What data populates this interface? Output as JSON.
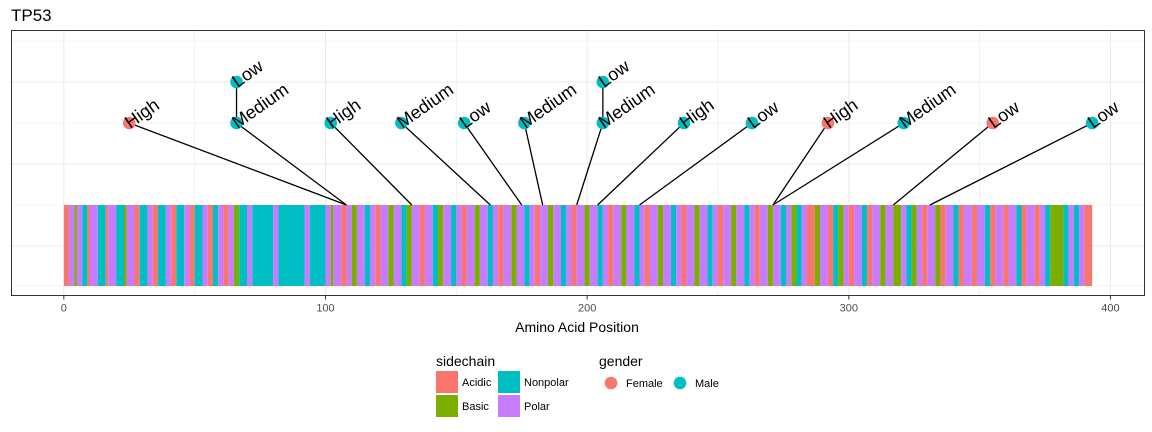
{
  "chart_data": {
    "type": "lollipop",
    "title": "TP53",
    "xlabel": "Amino Acid Position",
    "xlim": [
      -20,
      413
    ],
    "xticks": [
      0,
      100,
      200,
      300,
      400
    ],
    "protein_length": 393,
    "sidechain_colors": {
      "Acidic": "#F8766D",
      "Basic": "#7CAE00",
      "Nonpolar": "#00BFC4",
      "Polar": "#C77CFF"
    },
    "gender_colors": {
      "Female": "#F8766D",
      "Male": "#00BFC4"
    },
    "residue_segments": [
      {
        "start": 0,
        "end": 2,
        "sidechain": "Acidic"
      },
      {
        "start": 2,
        "end": 4,
        "sidechain": "Polar"
      },
      {
        "start": 4,
        "end": 5,
        "sidechain": "Basic"
      },
      {
        "start": 5,
        "end": 7,
        "sidechain": "Polar"
      },
      {
        "start": 7,
        "end": 9,
        "sidechain": "Nonpolar"
      },
      {
        "start": 9,
        "end": 10,
        "sidechain": "Acidic"
      },
      {
        "start": 10,
        "end": 13,
        "sidechain": "Polar"
      },
      {
        "start": 13,
        "end": 16,
        "sidechain": "Nonpolar"
      },
      {
        "start": 16,
        "end": 17,
        "sidechain": "Acidic"
      },
      {
        "start": 17,
        "end": 20,
        "sidechain": "Polar"
      },
      {
        "start": 20,
        "end": 23,
        "sidechain": "Nonpolar"
      },
      {
        "start": 23,
        "end": 24,
        "sidechain": "Basic"
      },
      {
        "start": 24,
        "end": 27,
        "sidechain": "Polar"
      },
      {
        "start": 27,
        "end": 29,
        "sidechain": "Acidic"
      },
      {
        "start": 29,
        "end": 32,
        "sidechain": "Nonpolar"
      },
      {
        "start": 32,
        "end": 34,
        "sidechain": "Polar"
      },
      {
        "start": 34,
        "end": 36,
        "sidechain": "Acidic"
      },
      {
        "start": 36,
        "end": 39,
        "sidechain": "Nonpolar"
      },
      {
        "start": 39,
        "end": 41,
        "sidechain": "Polar"
      },
      {
        "start": 41,
        "end": 43,
        "sidechain": "Acidic"
      },
      {
        "start": 43,
        "end": 46,
        "sidechain": "Nonpolar"
      },
      {
        "start": 46,
        "end": 48,
        "sidechain": "Polar"
      },
      {
        "start": 48,
        "end": 50,
        "sidechain": "Acidic"
      },
      {
        "start": 50,
        "end": 53,
        "sidechain": "Nonpolar"
      },
      {
        "start": 53,
        "end": 55,
        "sidechain": "Polar"
      },
      {
        "start": 55,
        "end": 57,
        "sidechain": "Acidic"
      },
      {
        "start": 57,
        "end": 59,
        "sidechain": "Nonpolar"
      },
      {
        "start": 59,
        "end": 61,
        "sidechain": "Polar"
      },
      {
        "start": 61,
        "end": 63,
        "sidechain": "Acidic"
      },
      {
        "start": 63,
        "end": 65,
        "sidechain": "Polar"
      },
      {
        "start": 65,
        "end": 67,
        "sidechain": "Basic"
      },
      {
        "start": 67,
        "end": 70,
        "sidechain": "Nonpolar"
      },
      {
        "start": 70,
        "end": 72,
        "sidechain": "Polar"
      },
      {
        "start": 72,
        "end": 80,
        "sidechain": "Nonpolar"
      },
      {
        "start": 80,
        "end": 82,
        "sidechain": "Polar"
      },
      {
        "start": 82,
        "end": 92,
        "sidechain": "Nonpolar"
      },
      {
        "start": 92,
        "end": 94,
        "sidechain": "Polar"
      },
      {
        "start": 94,
        "end": 100,
        "sidechain": "Nonpolar"
      },
      {
        "start": 100,
        "end": 102,
        "sidechain": "Polar"
      },
      {
        "start": 102,
        "end": 103,
        "sidechain": "Basic"
      },
      {
        "start": 103,
        "end": 106,
        "sidechain": "Polar"
      },
      {
        "start": 106,
        "end": 108,
        "sidechain": "Acidic"
      },
      {
        "start": 108,
        "end": 110,
        "sidechain": "Polar"
      },
      {
        "start": 110,
        "end": 112,
        "sidechain": "Basic"
      },
      {
        "start": 112,
        "end": 115,
        "sidechain": "Polar"
      },
      {
        "start": 115,
        "end": 117,
        "sidechain": "Nonpolar"
      },
      {
        "start": 117,
        "end": 119,
        "sidechain": "Polar"
      },
      {
        "start": 119,
        "end": 121,
        "sidechain": "Acidic"
      },
      {
        "start": 121,
        "end": 124,
        "sidechain": "Polar"
      },
      {
        "start": 124,
        "end": 126,
        "sidechain": "Basic"
      },
      {
        "start": 126,
        "end": 129,
        "sidechain": "Polar"
      },
      {
        "start": 129,
        "end": 131,
        "sidechain": "Nonpolar"
      },
      {
        "start": 131,
        "end": 133,
        "sidechain": "Basic"
      },
      {
        "start": 133,
        "end": 136,
        "sidechain": "Polar"
      },
      {
        "start": 136,
        "end": 138,
        "sidechain": "Acidic"
      },
      {
        "start": 138,
        "end": 141,
        "sidechain": "Polar"
      },
      {
        "start": 141,
        "end": 143,
        "sidechain": "Nonpolar"
      },
      {
        "start": 143,
        "end": 145,
        "sidechain": "Basic"
      },
      {
        "start": 145,
        "end": 148,
        "sidechain": "Polar"
      },
      {
        "start": 148,
        "end": 150,
        "sidechain": "Nonpolar"
      },
      {
        "start": 150,
        "end": 152,
        "sidechain": "Polar"
      },
      {
        "start": 152,
        "end": 154,
        "sidechain": "Acidic"
      },
      {
        "start": 154,
        "end": 157,
        "sidechain": "Polar"
      },
      {
        "start": 157,
        "end": 159,
        "sidechain": "Basic"
      },
      {
        "start": 159,
        "end": 162,
        "sidechain": "Polar"
      },
      {
        "start": 162,
        "end": 164,
        "sidechain": "Nonpolar"
      },
      {
        "start": 164,
        "end": 166,
        "sidechain": "Polar"
      },
      {
        "start": 166,
        "end": 168,
        "sidechain": "Acidic"
      },
      {
        "start": 168,
        "end": 171,
        "sidechain": "Polar"
      },
      {
        "start": 171,
        "end": 173,
        "sidechain": "Basic"
      },
      {
        "start": 173,
        "end": 176,
        "sidechain": "Polar"
      },
      {
        "start": 176,
        "end": 178,
        "sidechain": "Nonpolar"
      },
      {
        "start": 178,
        "end": 180,
        "sidechain": "Polar"
      },
      {
        "start": 180,
        "end": 182,
        "sidechain": "Acidic"
      },
      {
        "start": 182,
        "end": 185,
        "sidechain": "Polar"
      },
      {
        "start": 185,
        "end": 187,
        "sidechain": "Basic"
      },
      {
        "start": 187,
        "end": 190,
        "sidechain": "Polar"
      },
      {
        "start": 190,
        "end": 192,
        "sidechain": "Nonpolar"
      },
      {
        "start": 192,
        "end": 194,
        "sidechain": "Polar"
      },
      {
        "start": 194,
        "end": 196,
        "sidechain": "Acidic"
      },
      {
        "start": 196,
        "end": 199,
        "sidechain": "Polar"
      },
      {
        "start": 199,
        "end": 201,
        "sidechain": "Basic"
      },
      {
        "start": 201,
        "end": 204,
        "sidechain": "Polar"
      },
      {
        "start": 204,
        "end": 206,
        "sidechain": "Nonpolar"
      },
      {
        "start": 206,
        "end": 208,
        "sidechain": "Polar"
      },
      {
        "start": 208,
        "end": 210,
        "sidechain": "Acidic"
      },
      {
        "start": 210,
        "end": 213,
        "sidechain": "Polar"
      },
      {
        "start": 213,
        "end": 215,
        "sidechain": "Basic"
      },
      {
        "start": 215,
        "end": 218,
        "sidechain": "Polar"
      },
      {
        "start": 218,
        "end": 220,
        "sidechain": "Nonpolar"
      },
      {
        "start": 220,
        "end": 222,
        "sidechain": "Polar"
      },
      {
        "start": 222,
        "end": 224,
        "sidechain": "Acidic"
      },
      {
        "start": 224,
        "end": 227,
        "sidechain": "Polar"
      },
      {
        "start": 227,
        "end": 229,
        "sidechain": "Basic"
      },
      {
        "start": 229,
        "end": 232,
        "sidechain": "Polar"
      },
      {
        "start": 232,
        "end": 234,
        "sidechain": "Nonpolar"
      },
      {
        "start": 234,
        "end": 236,
        "sidechain": "Polar"
      },
      {
        "start": 236,
        "end": 238,
        "sidechain": "Acidic"
      },
      {
        "start": 238,
        "end": 241,
        "sidechain": "Polar"
      },
      {
        "start": 241,
        "end": 243,
        "sidechain": "Basic"
      },
      {
        "start": 243,
        "end": 246,
        "sidechain": "Polar"
      },
      {
        "start": 246,
        "end": 248,
        "sidechain": "Nonpolar"
      },
      {
        "start": 248,
        "end": 250,
        "sidechain": "Polar"
      },
      {
        "start": 250,
        "end": 252,
        "sidechain": "Acidic"
      },
      {
        "start": 252,
        "end": 255,
        "sidechain": "Polar"
      },
      {
        "start": 255,
        "end": 257,
        "sidechain": "Basic"
      },
      {
        "start": 257,
        "end": 260,
        "sidechain": "Polar"
      },
      {
        "start": 260,
        "end": 262,
        "sidechain": "Nonpolar"
      },
      {
        "start": 262,
        "end": 264,
        "sidechain": "Polar"
      },
      {
        "start": 264,
        "end": 266,
        "sidechain": "Acidic"
      },
      {
        "start": 266,
        "end": 269,
        "sidechain": "Polar"
      },
      {
        "start": 269,
        "end": 271,
        "sidechain": "Basic"
      },
      {
        "start": 271,
        "end": 274,
        "sidechain": "Polar"
      },
      {
        "start": 274,
        "end": 276,
        "sidechain": "Nonpolar"
      },
      {
        "start": 276,
        "end": 278,
        "sidechain": "Polar"
      },
      {
        "start": 278,
        "end": 280,
        "sidechain": "Basic"
      },
      {
        "start": 280,
        "end": 282,
        "sidechain": "Nonpolar"
      },
      {
        "start": 282,
        "end": 284,
        "sidechain": "Polar"
      },
      {
        "start": 284,
        "end": 287,
        "sidechain": "Acidic"
      },
      {
        "start": 287,
        "end": 289,
        "sidechain": "Basic"
      },
      {
        "start": 289,
        "end": 292,
        "sidechain": "Polar"
      },
      {
        "start": 292,
        "end": 294,
        "sidechain": "Acidic"
      },
      {
        "start": 294,
        "end": 296,
        "sidechain": "Nonpolar"
      },
      {
        "start": 296,
        "end": 298,
        "sidechain": "Basic"
      },
      {
        "start": 298,
        "end": 300,
        "sidechain": "Polar"
      },
      {
        "start": 300,
        "end": 302,
        "sidechain": "Acidic"
      },
      {
        "start": 302,
        "end": 305,
        "sidechain": "Polar"
      },
      {
        "start": 305,
        "end": 307,
        "sidechain": "Nonpolar"
      },
      {
        "start": 307,
        "end": 309,
        "sidechain": "Acidic"
      },
      {
        "start": 309,
        "end": 312,
        "sidechain": "Polar"
      },
      {
        "start": 312,
        "end": 314,
        "sidechain": "Basic"
      },
      {
        "start": 314,
        "end": 317,
        "sidechain": "Polar"
      },
      {
        "start": 317,
        "end": 320,
        "sidechain": "Basic"
      },
      {
        "start": 320,
        "end": 322,
        "sidechain": "Polar"
      },
      {
        "start": 322,
        "end": 324,
        "sidechain": "Nonpolar"
      },
      {
        "start": 324,
        "end": 326,
        "sidechain": "Basic"
      },
      {
        "start": 326,
        "end": 328,
        "sidechain": "Polar"
      },
      {
        "start": 328,
        "end": 330,
        "sidechain": "Acidic"
      },
      {
        "start": 330,
        "end": 333,
        "sidechain": "Polar"
      },
      {
        "start": 333,
        "end": 335,
        "sidechain": "Basic"
      },
      {
        "start": 335,
        "end": 337,
        "sidechain": "Acidic"
      },
      {
        "start": 337,
        "end": 340,
        "sidechain": "Polar"
      },
      {
        "start": 340,
        "end": 342,
        "sidechain": "Nonpolar"
      },
      {
        "start": 342,
        "end": 344,
        "sidechain": "Acidic"
      },
      {
        "start": 344,
        "end": 347,
        "sidechain": "Polar"
      },
      {
        "start": 347,
        "end": 349,
        "sidechain": "Acidic"
      },
      {
        "start": 349,
        "end": 352,
        "sidechain": "Polar"
      },
      {
        "start": 352,
        "end": 354,
        "sidechain": "Nonpolar"
      },
      {
        "start": 354,
        "end": 356,
        "sidechain": "Acidic"
      },
      {
        "start": 356,
        "end": 359,
        "sidechain": "Polar"
      },
      {
        "start": 359,
        "end": 361,
        "sidechain": "Acidic"
      },
      {
        "start": 361,
        "end": 364,
        "sidechain": "Polar"
      },
      {
        "start": 364,
        "end": 366,
        "sidechain": "Nonpolar"
      },
      {
        "start": 366,
        "end": 368,
        "sidechain": "Acidic"
      },
      {
        "start": 368,
        "end": 371,
        "sidechain": "Polar"
      },
      {
        "start": 371,
        "end": 373,
        "sidechain": "Acidic"
      },
      {
        "start": 373,
        "end": 375,
        "sidechain": "Polar"
      },
      {
        "start": 375,
        "end": 377,
        "sidechain": "Nonpolar"
      },
      {
        "start": 377,
        "end": 382,
        "sidechain": "Basic"
      },
      {
        "start": 382,
        "end": 384,
        "sidechain": "Nonpolar"
      },
      {
        "start": 384,
        "end": 386,
        "sidechain": "Polar"
      },
      {
        "start": 386,
        "end": 388,
        "sidechain": "Nonpolar"
      },
      {
        "start": 388,
        "end": 390,
        "sidechain": "Polar"
      },
      {
        "start": 390,
        "end": 393,
        "sidechain": "Acidic"
      }
    ],
    "mutations": [
      {
        "position": 108,
        "label_x": 25,
        "level": 1,
        "label": "High",
        "gender": "Female"
      },
      {
        "position": 108,
        "label_x": 66,
        "level": 1,
        "label": "Medium",
        "gender": "Male"
      },
      {
        "position": 108,
        "label_x": 66,
        "level": 2,
        "label": "Low",
        "gender": "Male"
      },
      {
        "position": 133,
        "label_x": 102,
        "level": 1,
        "label": "High",
        "gender": "Male"
      },
      {
        "position": 163,
        "label_x": 129,
        "level": 1,
        "label": "Medium",
        "gender": "Male"
      },
      {
        "position": 175,
        "label_x": 153,
        "level": 1,
        "label": "Low",
        "gender": "Male"
      },
      {
        "position": 183,
        "label_x": 176,
        "level": 1,
        "label": "Medium",
        "gender": "Male"
      },
      {
        "position": 196,
        "label_x": 206,
        "level": 1,
        "label": "Medium",
        "gender": "Male"
      },
      {
        "position": 196,
        "label_x": 206,
        "level": 2,
        "label": "Low",
        "gender": "Male"
      },
      {
        "position": 204,
        "label_x": 237,
        "level": 1,
        "label": "High",
        "gender": "Male"
      },
      {
        "position": 220,
        "label_x": 263,
        "level": 1,
        "label": "Low",
        "gender": "Male"
      },
      {
        "position": 271,
        "label_x": 292,
        "level": 1,
        "label": "High",
        "gender": "Female"
      },
      {
        "position": 271,
        "label_x": 321,
        "level": 1,
        "label": "Medium",
        "gender": "Male"
      },
      {
        "position": 317,
        "label_x": 355,
        "level": 1,
        "label": "Low",
        "gender": "Female"
      },
      {
        "position": 331,
        "label_x": 393,
        "level": 1,
        "label": "Low",
        "gender": "Male"
      }
    ],
    "legend": {
      "sidechain_title": "sidechain",
      "sidechain_items": [
        "Acidic",
        "Nonpolar",
        "Basic",
        "Polar"
      ],
      "gender_title": "gender",
      "gender_items": [
        "Female",
        "Male"
      ],
      "position": "bottom"
    },
    "grid": true
  }
}
